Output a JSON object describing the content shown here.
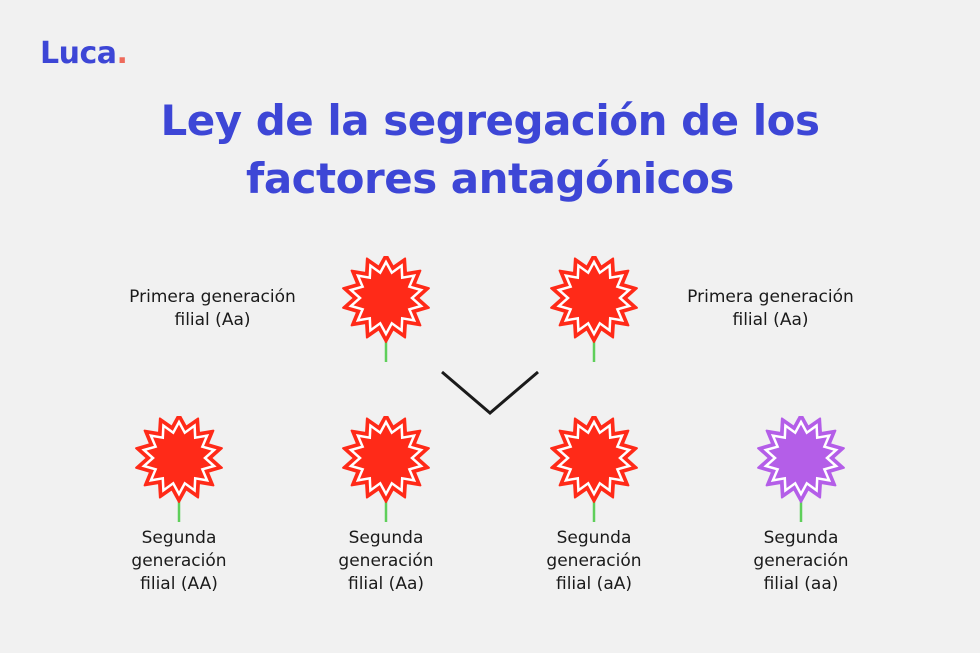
{
  "logo": {
    "text": "Luca",
    "dot": "."
  },
  "title": {
    "line1": "Ley de la segregación de los",
    "line2": "factores antagónicos"
  },
  "colors": {
    "brand": "#3d46d6",
    "logo_dot": "#ee6a5b",
    "dominant_flower": "#ff2a18",
    "recessive_flower": "#b45ee8",
    "stem": "#5fcf5a"
  },
  "first_generation": [
    {
      "label_line1": "Primera generación",
      "label_line2": "filial (Aa)",
      "flower_color": "red"
    },
    {
      "label_line1": "Primera generación",
      "label_line2": "filial (Aa)",
      "flower_color": "red"
    }
  ],
  "second_generation": [
    {
      "label_line1": "Segunda",
      "label_line2": "generación",
      "label_line3": "filial (AA)",
      "flower_color": "red"
    },
    {
      "label_line1": "Segunda",
      "label_line2": "generación",
      "label_line3": "filial (Aa)",
      "flower_color": "red"
    },
    {
      "label_line1": "Segunda",
      "label_line2": "generación",
      "label_line3": "filial (aA)",
      "flower_color": "red"
    },
    {
      "label_line1": "Segunda",
      "label_line2": "generación",
      "label_line3": "filial (aa)",
      "flower_color": "purple"
    }
  ],
  "icons": {
    "flower": "flower-icon",
    "cross": "chevron-down-icon"
  }
}
